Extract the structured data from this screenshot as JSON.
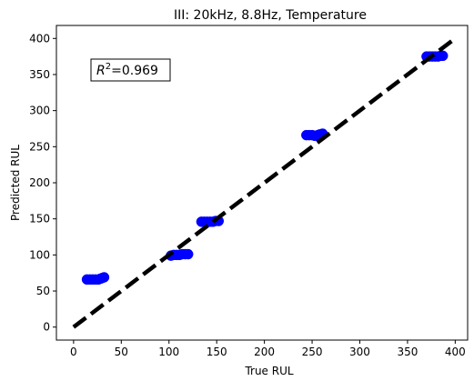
{
  "chart_data": {
    "type": "scatter",
    "title": "III: 20kHz, 8.8Hz, Temperature",
    "xlabel": "True RUL",
    "ylabel": "Predicted RUL",
    "xlim": [
      -18,
      413
    ],
    "ylim": [
      -18,
      418
    ],
    "xticks": [
      0,
      50,
      100,
      150,
      200,
      250,
      300,
      350,
      400
    ],
    "yticks": [
      0,
      50,
      100,
      150,
      200,
      250,
      300,
      350,
      400
    ],
    "grid": false,
    "annotation": {
      "prefix": "R",
      "superscript": "2",
      "text": "=0.969"
    },
    "reference_line": {
      "style": "dashed",
      "color": "#000000",
      "x": [
        0,
        400
      ],
      "y": [
        0,
        400
      ]
    },
    "series": [
      {
        "color": "#0000ff",
        "points": [
          [
            14,
            66
          ],
          [
            17,
            66
          ],
          [
            20,
            66
          ],
          [
            23,
            66
          ],
          [
            26,
            66
          ],
          [
            28,
            67
          ],
          [
            30,
            68
          ],
          [
            32,
            69
          ],
          [
            102,
            99
          ],
          [
            105,
            100
          ],
          [
            108,
            100
          ],
          [
            111,
            100
          ],
          [
            114,
            101
          ],
          [
            117,
            101
          ],
          [
            120,
            101
          ],
          [
            134,
            146
          ],
          [
            137,
            146
          ],
          [
            140,
            146
          ],
          [
            143,
            146
          ],
          [
            146,
            146
          ],
          [
            149,
            147
          ],
          [
            152,
            147
          ],
          [
            244,
            266
          ],
          [
            247,
            266
          ],
          [
            250,
            266
          ],
          [
            253,
            265
          ],
          [
            256,
            266
          ],
          [
            258,
            267
          ],
          [
            261,
            268
          ],
          [
            370,
            375
          ],
          [
            373,
            375
          ],
          [
            376,
            375
          ],
          [
            379,
            375
          ],
          [
            382,
            375
          ],
          [
            385,
            376
          ],
          [
            387,
            376
          ]
        ]
      }
    ]
  }
}
